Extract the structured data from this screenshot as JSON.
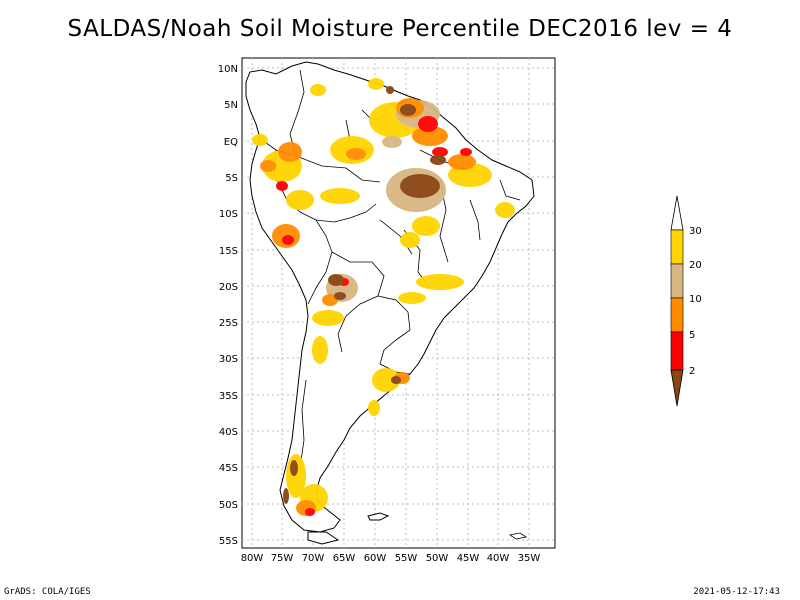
{
  "title": "SALDAS/Noah Soil Moisture Percentile DEC2016 lev = 4",
  "map": {
    "lat_labels": [
      "10N",
      "5N",
      "EQ",
      "5S",
      "10S",
      "15S",
      "20S",
      "25S",
      "30S",
      "35S",
      "40S",
      "45S",
      "50S",
      "55S"
    ],
    "lon_labels": [
      "80W",
      "75W",
      "70W",
      "65W",
      "60W",
      "55W",
      "50W",
      "45W",
      "40W",
      "35W"
    ]
  },
  "legend": {
    "categories": [
      {
        "label": "30",
        "color": "#ffd400"
      },
      {
        "label": "20",
        "color": "#d8b682"
      },
      {
        "label": "10",
        "color": "#ff8c00"
      },
      {
        "label": "5",
        "color": "#ff0000"
      },
      {
        "label": "2",
        "color": "#8b4513"
      }
    ],
    "top_color": "#ffffff",
    "bottom_color": "#8b4513"
  },
  "footer": {
    "left": "GrADS: COLA/IGES",
    "right": "2021-05-12-17:43"
  }
}
